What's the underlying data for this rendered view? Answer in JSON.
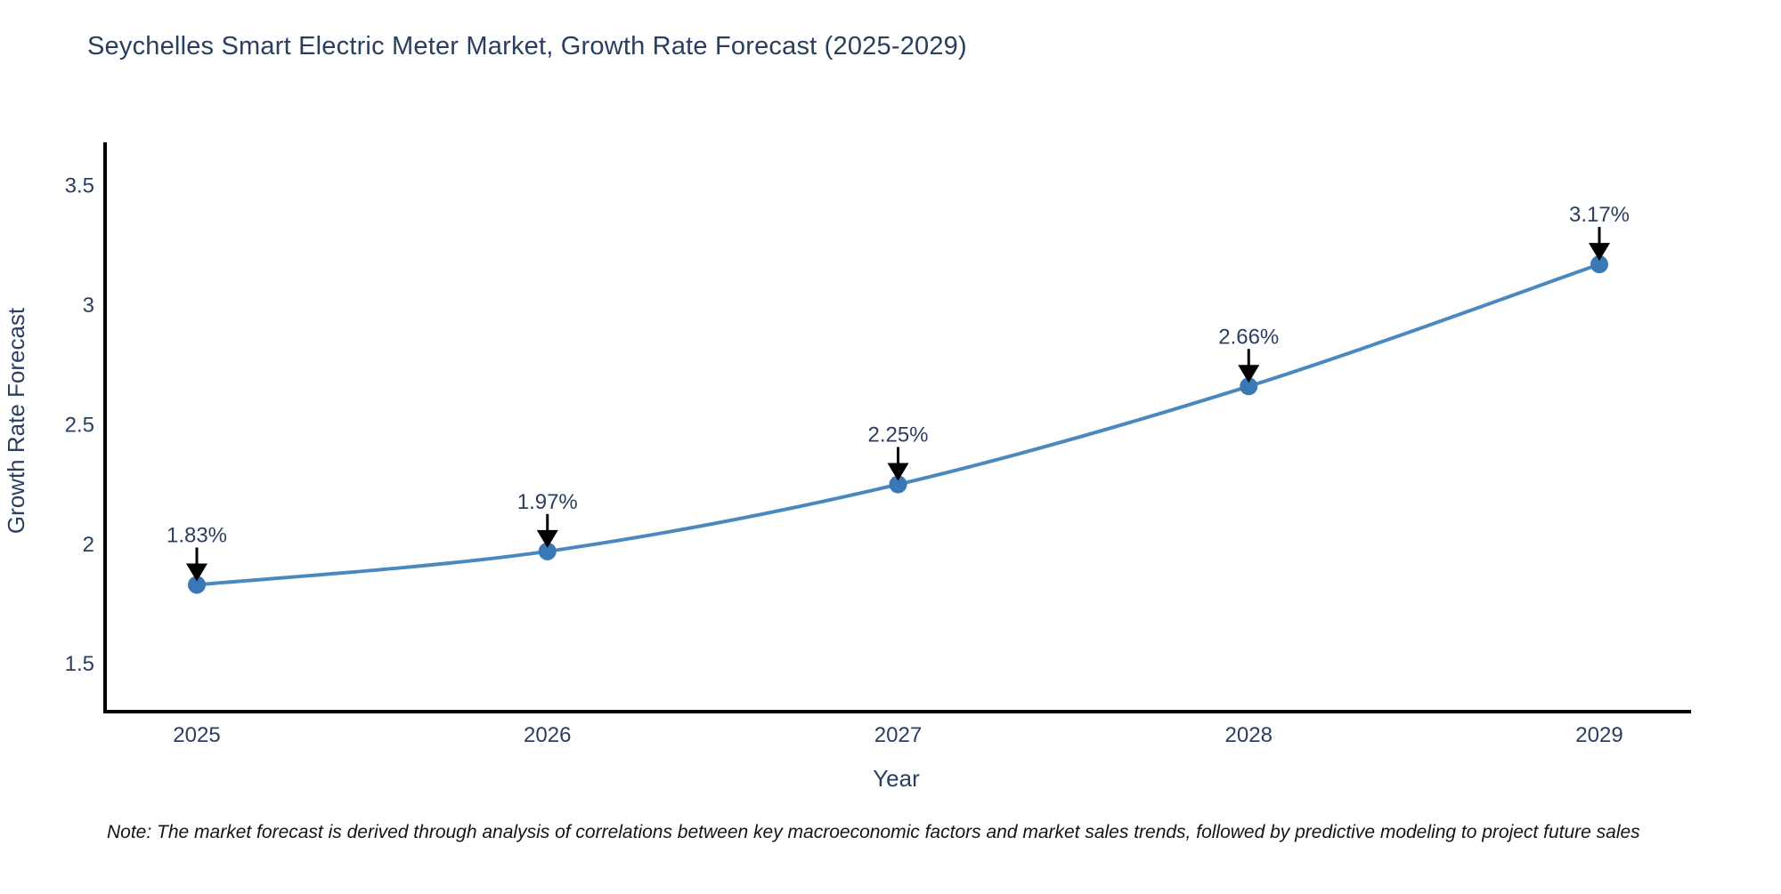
{
  "chart": {
    "title": "Seychelles Smart Electric Meter Market, Growth Rate Forecast (2025-2029)",
    "note": "Note: The market forecast is derived through analysis of correlations between key macroeconomic factors and market sales trends, followed by predictive modeling to project future sales"
  },
  "chart_data": {
    "type": "line",
    "title": "Seychelles Smart Electric Meter Market, Growth Rate Forecast (2025-2029)",
    "xlabel": "Year",
    "ylabel": "Growth Rate Forecast",
    "x": [
      2025,
      2026,
      2027,
      2028,
      2029
    ],
    "y": [
      1.83,
      1.97,
      2.25,
      2.66,
      3.17
    ],
    "point_labels": [
      "1.83%",
      "1.97%",
      "2.25%",
      "2.66%",
      "3.17%"
    ],
    "xticklabels": [
      "2025",
      "2026",
      "2027",
      "2028",
      "2029"
    ],
    "yticks": [
      1.5,
      2,
      2.5,
      3,
      3.5
    ],
    "yticklabels": [
      "1.5",
      "2",
      "2.5",
      "3",
      "3.5"
    ],
    "ylim": [
      1.3,
      3.68
    ],
    "grid": false,
    "legend": false,
    "line_shape": "spline",
    "annotation_arrows": "down-arrow-to-point",
    "colors": {
      "line": "#4A89C0",
      "marker": "#3879B5",
      "arrow": "#000000",
      "text": "#2a3f5f",
      "axis": "#000000",
      "background": "#ffffff"
    }
  }
}
